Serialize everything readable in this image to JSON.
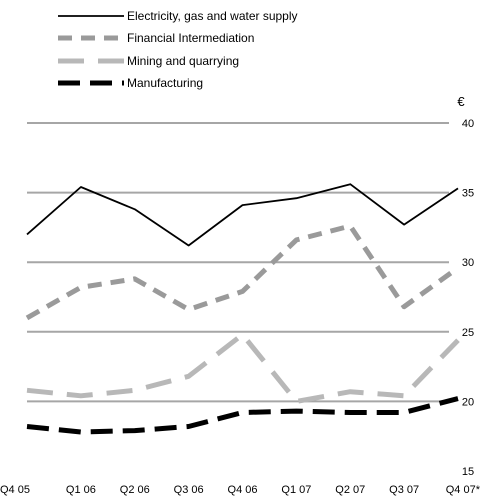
{
  "chart_data": {
    "type": "line",
    "title": "",
    "xlabel": "",
    "ylabel": "€",
    "categories": [
      "Q4 05",
      "Q1 06",
      "Q2 06",
      "Q3 06",
      "Q4 06",
      "Q1 07",
      "Q2 07",
      "Q3 07",
      "Q4 07*"
    ],
    "ylim": [
      15,
      40
    ],
    "yticks": [
      15,
      20,
      25,
      30,
      35,
      40
    ],
    "y_axis_position": "right",
    "grid": "horizontal",
    "legend_position": "top-left",
    "series": [
      {
        "name": "Electricity, gas and water supply",
        "color": "#000000",
        "style": "solid",
        "values": [
          32.0,
          35.4,
          33.8,
          31.2,
          34.1,
          34.6,
          35.6,
          32.7,
          35.3
        ]
      },
      {
        "name": "Financial Intermediation",
        "color": "#9a9a9a",
        "style": "dashed",
        "values": [
          26.0,
          28.2,
          28.8,
          26.6,
          27.9,
          31.6,
          32.6,
          26.8,
          29.6
        ]
      },
      {
        "name": "Mining and quarrying",
        "color": "#b8b8b8",
        "style": "long-dashed",
        "values": [
          20.8,
          20.4,
          20.8,
          21.8,
          24.8,
          20.0,
          20.7,
          20.4,
          24.4
        ]
      },
      {
        "name": "Manufacturing",
        "color": "#000000",
        "style": "thick-dashed",
        "values": [
          18.2,
          17.8,
          17.9,
          18.2,
          19.2,
          19.3,
          19.2,
          19.2,
          20.2
        ]
      }
    ]
  }
}
